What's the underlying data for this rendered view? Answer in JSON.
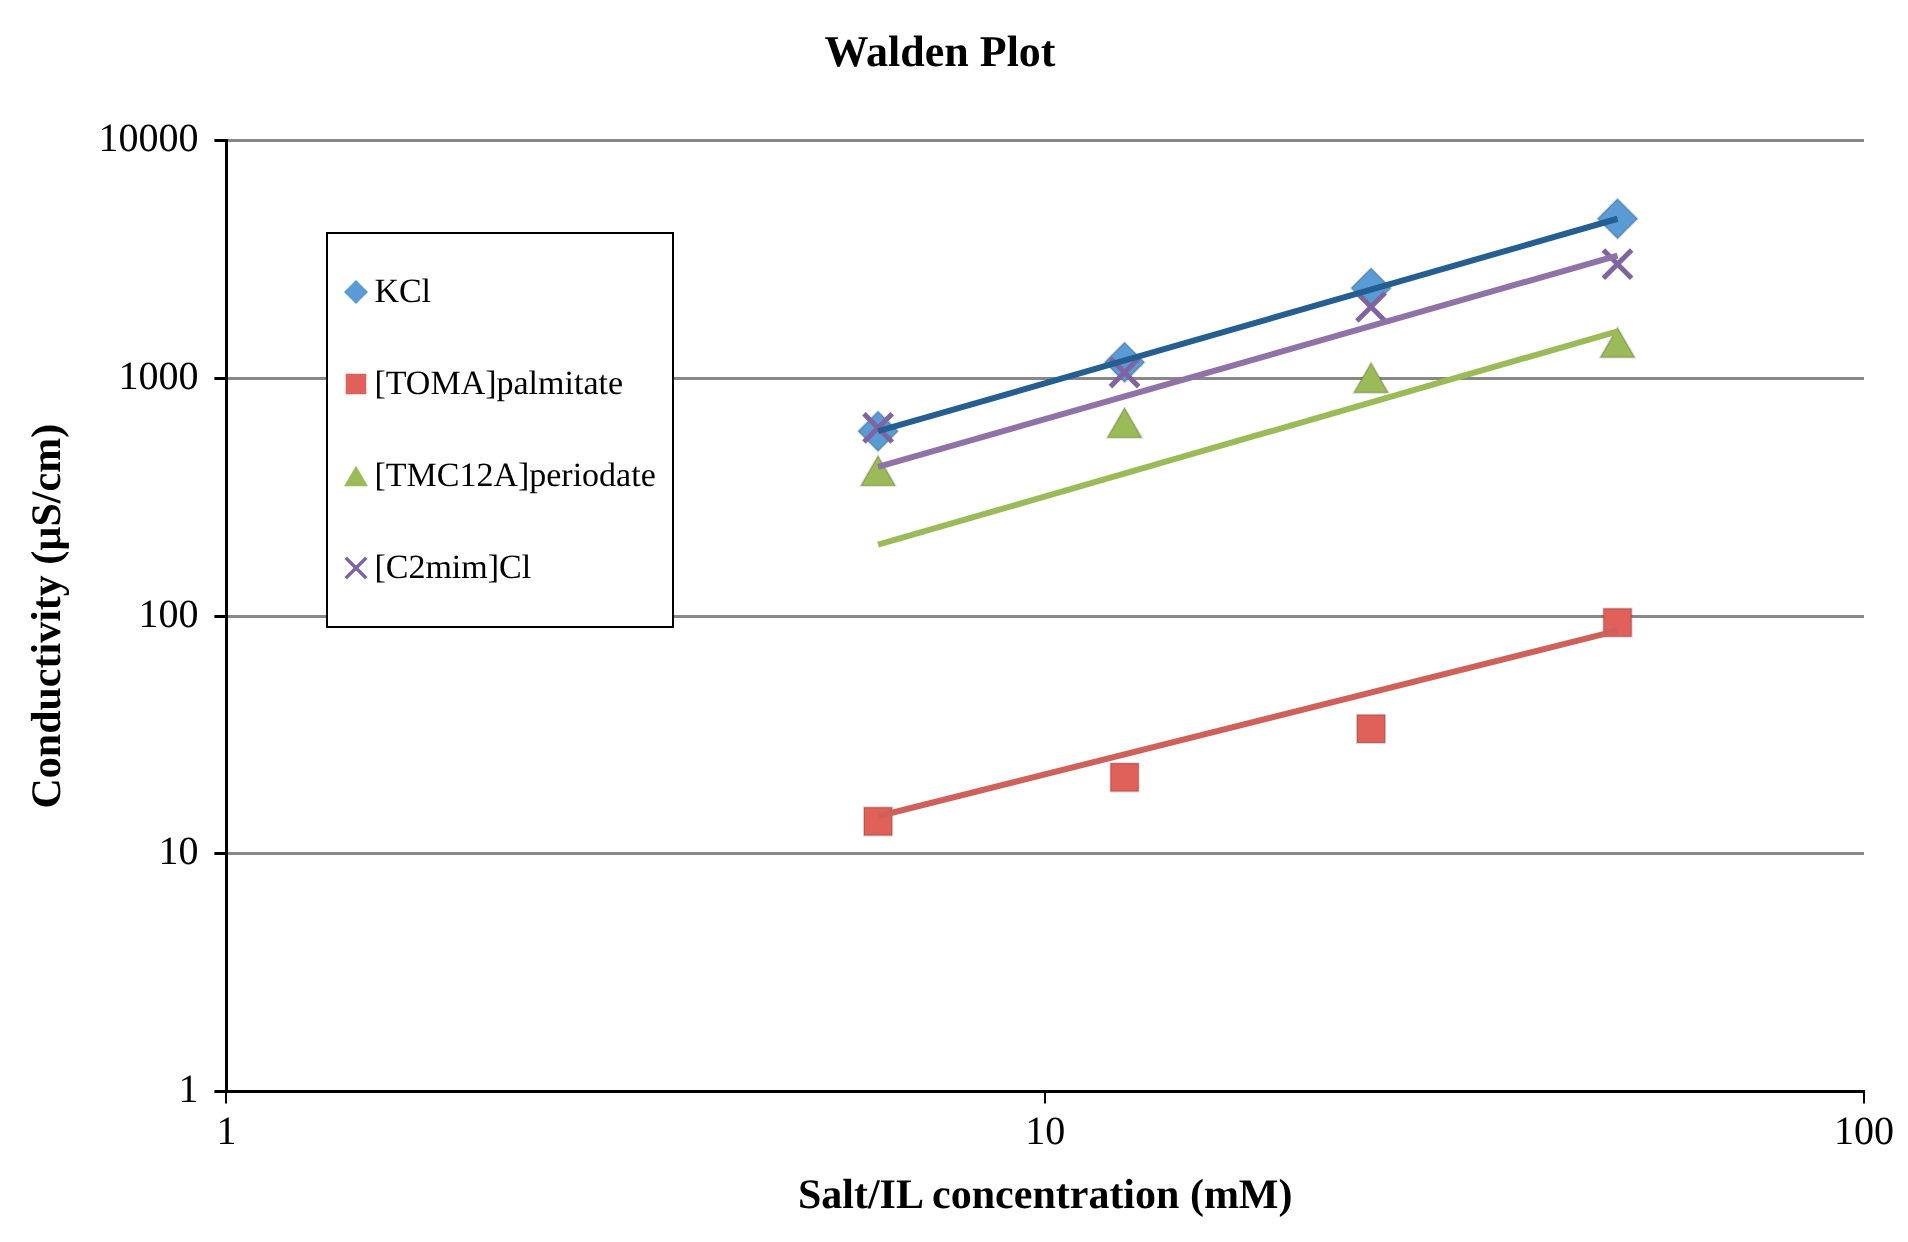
{
  "chart_data": {
    "type": "scatter",
    "title": "Walden Plot",
    "xlabel": "Salt/IL concentration (mM)",
    "ylabel": "Conductivity (µS/cm)",
    "log": "xy",
    "xlim": [
      1,
      100
    ],
    "xticks": [
      1,
      10,
      100
    ],
    "ylim": [
      1,
      10000
    ],
    "yticks": [
      1,
      10,
      100,
      1000,
      10000
    ],
    "grid": "y",
    "legend": "top left",
    "series": [
      {
        "name": "KCl",
        "color": "#5b9bd5",
        "marker": "diamond",
        "x": [
          6.25,
          12.5,
          25,
          50
        ],
        "values": [
          600,
          1170,
          2400,
          4700
        ]
      },
      {
        "name": "[TOMA]palmitate",
        "color": "#e0605a",
        "marker": "square",
        "x": [
          6.25,
          12.5,
          25,
          50
        ],
        "values": [
          13.7,
          21,
          33.6,
          94
        ]
      },
      {
        "name": "[TMC12A]periodate",
        "color": "#9bbb59",
        "marker": "triangle",
        "x": [
          6.25,
          12.5,
          25,
          50
        ],
        "values": [
          390,
          620,
          960,
          1350
        ]
      },
      {
        "name": "[C2mim]Cl",
        "color": "#8064a2",
        "marker": "cross",
        "x": [
          6.25,
          12.5,
          25,
          50
        ],
        "values": [
          620,
          1060,
          2000,
          3030
        ]
      },
      {
        "type": "line",
        "color": "#255e91",
        "marker": "none",
        "x": [
          6.25,
          50
        ],
        "values": [
          600,
          4700
        ]
      },
      {
        "type": "line",
        "color": "#d0605a",
        "marker": "none",
        "x": [
          6.25,
          50
        ],
        "values": [
          14.4,
          87
        ]
      },
      {
        "type": "line",
        "color": "#9bbb59",
        "marker": "none",
        "x": [
          6.25,
          50
        ],
        "values": [
          200,
          1580
        ]
      },
      {
        "type": "line",
        "color": "#8e72a8",
        "marker": "none",
        "x": [
          6.25,
          50
        ],
        "values": [
          425,
          3290
        ]
      }
    ]
  }
}
